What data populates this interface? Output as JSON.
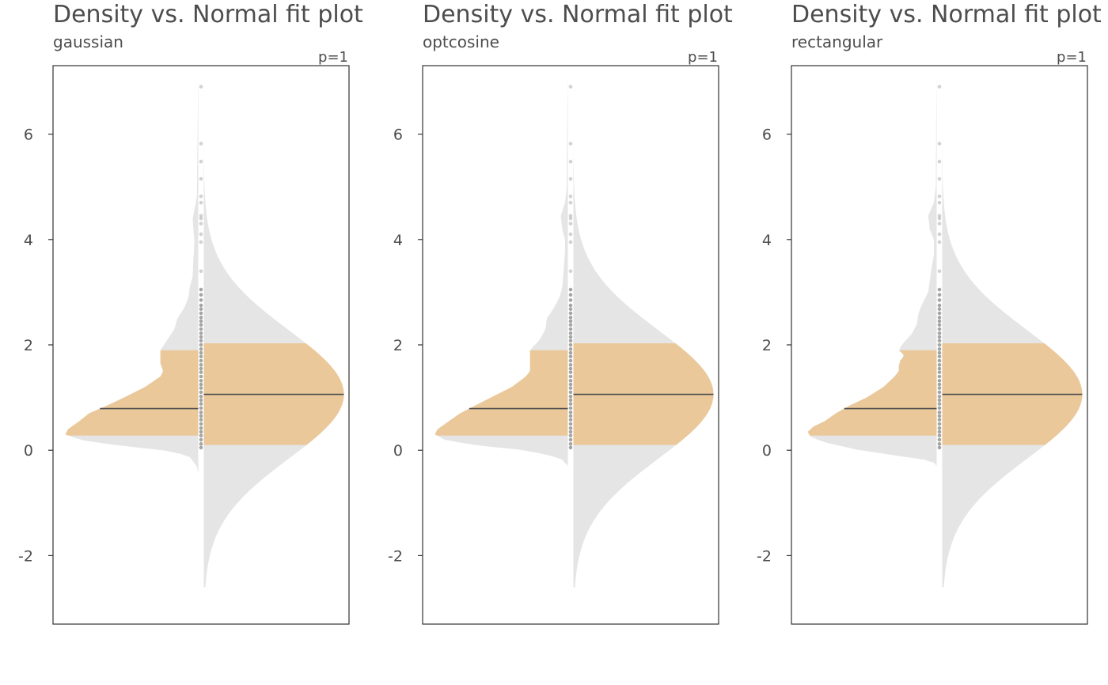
{
  "colors": {
    "tail": "#e5e5e5",
    "quantile_band": "#eac89a",
    "median_line": "#4d4d4d",
    "points": "#7f7f7f",
    "frame": "#333333",
    "text": "#4d4d4d"
  },
  "chart_data": [
    {
      "type": "area",
      "title": "Density vs. Normal fit plot",
      "subtitle": "gaussian",
      "p_label": "p=1",
      "ylim": [
        -3.3,
        7.3
      ],
      "yticks": [
        -2,
        0,
        2,
        4,
        6
      ],
      "grid": false,
      "kernel_density": {
        "half": "left",
        "y_range": [
          -0.45,
          7.2
        ],
        "band": [
          0.28,
          1.9
        ],
        "median": 0.79,
        "profile": [
          [
            -0.45,
            0
          ],
          [
            -0.3,
            0.01
          ],
          [
            -0.1,
            0.07
          ],
          [
            0.0,
            0.25
          ],
          [
            0.1,
            0.6
          ],
          [
            0.2,
            0.85
          ],
          [
            0.3,
            0.95
          ],
          [
            0.4,
            0.93
          ],
          [
            0.55,
            0.85
          ],
          [
            0.7,
            0.78
          ],
          [
            0.85,
            0.65
          ],
          [
            1.0,
            0.53
          ],
          [
            1.2,
            0.38
          ],
          [
            1.4,
            0.27
          ],
          [
            1.5,
            0.25
          ],
          [
            1.65,
            0.27
          ],
          [
            1.9,
            0.27
          ],
          [
            2.1,
            0.22
          ],
          [
            2.3,
            0.17
          ],
          [
            2.5,
            0.15
          ],
          [
            2.7,
            0.1
          ],
          [
            2.9,
            0.07
          ],
          [
            3.1,
            0.06
          ],
          [
            3.3,
            0.04
          ],
          [
            3.6,
            0.035
          ],
          [
            3.8,
            0.03
          ],
          [
            4.0,
            0.028
          ],
          [
            4.2,
            0.035
          ],
          [
            4.4,
            0.04
          ],
          [
            4.6,
            0.025
          ],
          [
            4.8,
            0.01
          ],
          [
            5.2,
            0.008
          ],
          [
            6.0,
            0.005
          ],
          [
            6.5,
            0.003
          ],
          [
            7.2,
            0
          ]
        ]
      },
      "normal_fit": {
        "half": "right",
        "y_range": [
          -2.6,
          6.4
        ],
        "band": [
          0.1,
          2.03
        ],
        "median": 1.06,
        "mean": 1.06,
        "sd": 1.22
      },
      "points": [
        0.05,
        0.12,
        0.2,
        0.28,
        0.35,
        0.42,
        0.5,
        0.58,
        0.65,
        0.72,
        0.8,
        0.88,
        0.95,
        1.02,
        1.1,
        1.18,
        1.25,
        1.32,
        1.4,
        1.48,
        1.55,
        1.62,
        1.7,
        1.78,
        1.85,
        1.92,
        2.0,
        2.08,
        2.15,
        2.22,
        2.3,
        2.38,
        2.45,
        2.52,
        2.6,
        2.68,
        2.75,
        2.85,
        2.95,
        3.05,
        3.4,
        3.95,
        4.1,
        4.3,
        4.4,
        4.45,
        4.7,
        4.82,
        5.15,
        5.48,
        5.82,
        6.9
      ]
    },
    {
      "type": "area",
      "title": "Density vs. Normal fit plot",
      "subtitle": "optcosine",
      "p_label": "p=1",
      "ylim": [
        -3.3,
        7.3
      ],
      "yticks": [
        -2,
        0,
        2,
        4,
        6
      ],
      "grid": false,
      "kernel_density": {
        "half": "left",
        "y_range": [
          -0.3,
          7.2
        ],
        "band": [
          0.28,
          1.9
        ],
        "median": 0.79,
        "profile": [
          [
            -0.3,
            0
          ],
          [
            -0.15,
            0.05
          ],
          [
            0.0,
            0.3
          ],
          [
            0.1,
            0.68
          ],
          [
            0.2,
            0.88
          ],
          [
            0.3,
            0.95
          ],
          [
            0.4,
            0.93
          ],
          [
            0.55,
            0.85
          ],
          [
            0.7,
            0.77
          ],
          [
            0.85,
            0.66
          ],
          [
            1.0,
            0.55
          ],
          [
            1.2,
            0.4
          ],
          [
            1.4,
            0.3
          ],
          [
            1.5,
            0.27
          ],
          [
            1.65,
            0.27
          ],
          [
            1.9,
            0.27
          ],
          [
            2.1,
            0.2
          ],
          [
            2.3,
            0.16
          ],
          [
            2.5,
            0.15
          ],
          [
            2.7,
            0.1
          ],
          [
            2.9,
            0.06
          ],
          [
            3.1,
            0.04
          ],
          [
            3.4,
            0.03
          ],
          [
            3.8,
            0.02
          ],
          [
            4.0,
            0.02
          ],
          [
            4.2,
            0.04
          ],
          [
            4.45,
            0.05
          ],
          [
            4.7,
            0.02
          ],
          [
            5.0,
            0.008
          ],
          [
            6.0,
            0.005
          ],
          [
            7.2,
            0
          ]
        ]
      },
      "normal_fit": {
        "half": "right",
        "y_range": [
          -2.6,
          6.4
        ],
        "band": [
          0.1,
          2.03
        ],
        "median": 1.06,
        "mean": 1.06,
        "sd": 1.22
      },
      "points": [
        0.05,
        0.12,
        0.2,
        0.28,
        0.35,
        0.42,
        0.5,
        0.58,
        0.65,
        0.72,
        0.8,
        0.88,
        0.95,
        1.02,
        1.1,
        1.18,
        1.25,
        1.32,
        1.4,
        1.48,
        1.55,
        1.62,
        1.7,
        1.78,
        1.85,
        1.92,
        2.0,
        2.08,
        2.15,
        2.22,
        2.3,
        2.38,
        2.45,
        2.52,
        2.6,
        2.68,
        2.75,
        2.85,
        2.95,
        3.05,
        3.4,
        3.95,
        4.1,
        4.3,
        4.4,
        4.45,
        4.7,
        4.82,
        5.15,
        5.48,
        5.82,
        6.9
      ]
    },
    {
      "type": "area",
      "title": "Density vs. Normal fit plot",
      "subtitle": "rectangular",
      "p_label": "p=1",
      "ylim": [
        -3.3,
        7.3
      ],
      "yticks": [
        -2,
        0,
        2,
        4,
        6
      ],
      "grid": false,
      "kernel_density": {
        "half": "left",
        "y_range": [
          -0.3,
          7.2
        ],
        "band": [
          0.28,
          1.9
        ],
        "median": 0.79,
        "profile": [
          [
            -0.3,
            0
          ],
          [
            -0.2,
            0.03
          ],
          [
            0.0,
            0.55
          ],
          [
            0.15,
            0.8
          ],
          [
            0.25,
            0.9
          ],
          [
            0.35,
            0.92
          ],
          [
            0.45,
            0.88
          ],
          [
            0.55,
            0.8
          ],
          [
            0.7,
            0.72
          ],
          [
            0.85,
            0.62
          ],
          [
            1.0,
            0.5
          ],
          [
            1.2,
            0.38
          ],
          [
            1.4,
            0.3
          ],
          [
            1.5,
            0.27
          ],
          [
            1.6,
            0.27
          ],
          [
            1.7,
            0.26
          ],
          [
            1.8,
            0.23
          ],
          [
            1.9,
            0.27
          ],
          [
            2.0,
            0.25
          ],
          [
            2.2,
            0.18
          ],
          [
            2.4,
            0.14
          ],
          [
            2.6,
            0.13
          ],
          [
            2.8,
            0.1
          ],
          [
            3.0,
            0.06
          ],
          [
            3.2,
            0.05
          ],
          [
            3.4,
            0.04
          ],
          [
            3.7,
            0.02
          ],
          [
            4.0,
            0.02
          ],
          [
            4.2,
            0.05
          ],
          [
            4.45,
            0.06
          ],
          [
            4.7,
            0.02
          ],
          [
            5.0,
            0.006
          ],
          [
            6.0,
            0.004
          ],
          [
            7.2,
            0
          ]
        ]
      },
      "normal_fit": {
        "half": "right",
        "y_range": [
          -2.6,
          6.4
        ],
        "band": [
          0.1,
          2.03
        ],
        "median": 1.06,
        "mean": 1.06,
        "sd": 1.22
      },
      "points": [
        0.05,
        0.12,
        0.2,
        0.28,
        0.35,
        0.42,
        0.5,
        0.58,
        0.65,
        0.72,
        0.8,
        0.88,
        0.95,
        1.02,
        1.1,
        1.18,
        1.25,
        1.32,
        1.4,
        1.48,
        1.55,
        1.62,
        1.7,
        1.78,
        1.85,
        1.92,
        2.0,
        2.08,
        2.15,
        2.22,
        2.3,
        2.38,
        2.45,
        2.52,
        2.6,
        2.68,
        2.75,
        2.85,
        2.95,
        3.05,
        3.4,
        3.95,
        4.1,
        4.3,
        4.4,
        4.45,
        4.7,
        4.82,
        5.15,
        5.48,
        5.82,
        6.9
      ]
    }
  ]
}
